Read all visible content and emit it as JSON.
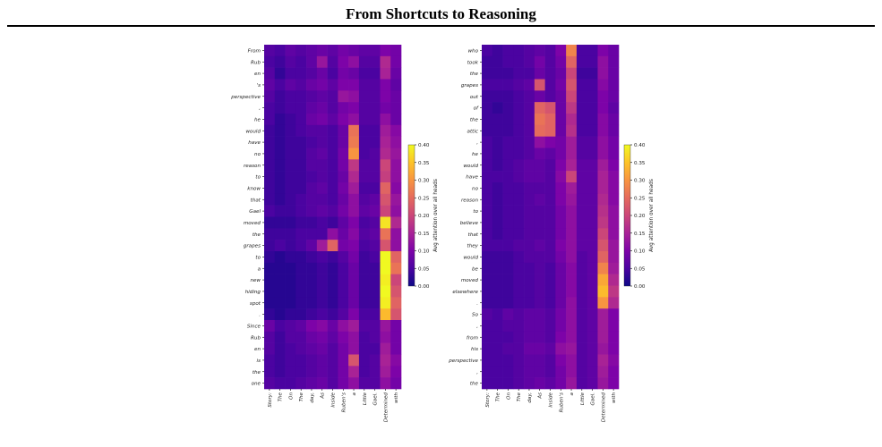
{
  "page": {
    "title": "From Shortcuts to Reasoning"
  },
  "chart_data": [
    {
      "type": "heatmap",
      "xlabel": "",
      "ylabel": "",
      "x_labels": [
        "Story:",
        "The",
        "On",
        "The",
        "day,",
        "As",
        "Inside",
        "Ruben's",
        "a",
        "Little",
        "Gael.",
        "Determined",
        "with"
      ],
      "y_labels": [
        "From",
        "Rub",
        "en",
        "'s",
        "perspective",
        ",",
        "he",
        "would",
        "have",
        "no",
        "reason",
        "to",
        "know",
        "that",
        "Gael",
        "moved",
        "the",
        "grapes",
        "to",
        "a",
        "new",
        "hiding",
        "spot",
        ".",
        "Since",
        "Rub",
        "en",
        "is",
        "the",
        "one"
      ],
      "colormap": "plasma",
      "colorbar": {
        "label": "Avg attention over all heads",
        "range": [
          0.0,
          0.4
        ],
        "ticks": [
          "0.00",
          "0.05",
          "0.10",
          "0.15",
          "0.20",
          "0.25",
          "0.30",
          "0.35",
          "0.40"
        ]
      },
      "values": [
        [
          0.06,
          0.05,
          0.07,
          0.06,
          0.07,
          0.08,
          0.07,
          0.09,
          0.08,
          0.07,
          0.07,
          0.1,
          0.09
        ],
        [
          0.05,
          0.04,
          0.06,
          0.05,
          0.07,
          0.13,
          0.06,
          0.1,
          0.12,
          0.06,
          0.06,
          0.16,
          0.09
        ],
        [
          0.06,
          0.03,
          0.05,
          0.05,
          0.06,
          0.08,
          0.05,
          0.09,
          0.08,
          0.05,
          0.05,
          0.15,
          0.08
        ],
        [
          0.07,
          0.05,
          0.07,
          0.06,
          0.08,
          0.09,
          0.07,
          0.1,
          0.1,
          0.06,
          0.06,
          0.1,
          0.07
        ],
        [
          0.06,
          0.04,
          0.05,
          0.05,
          0.06,
          0.07,
          0.06,
          0.13,
          0.12,
          0.06,
          0.06,
          0.1,
          0.08
        ],
        [
          0.05,
          0.04,
          0.05,
          0.05,
          0.07,
          0.08,
          0.06,
          0.09,
          0.1,
          0.06,
          0.06,
          0.09,
          0.08
        ],
        [
          0.05,
          0.03,
          0.04,
          0.05,
          0.08,
          0.09,
          0.07,
          0.1,
          0.12,
          0.06,
          0.06,
          0.12,
          0.08
        ],
        [
          0.04,
          0.03,
          0.04,
          0.05,
          0.06,
          0.06,
          0.05,
          0.08,
          0.26,
          0.05,
          0.05,
          0.14,
          0.11
        ],
        [
          0.04,
          0.03,
          0.04,
          0.04,
          0.05,
          0.06,
          0.05,
          0.08,
          0.27,
          0.05,
          0.05,
          0.15,
          0.12
        ],
        [
          0.04,
          0.03,
          0.04,
          0.04,
          0.06,
          0.07,
          0.05,
          0.09,
          0.3,
          0.05,
          0.06,
          0.16,
          0.13
        ],
        [
          0.04,
          0.03,
          0.04,
          0.04,
          0.06,
          0.06,
          0.05,
          0.09,
          0.18,
          0.06,
          0.06,
          0.2,
          0.12
        ],
        [
          0.04,
          0.03,
          0.04,
          0.04,
          0.05,
          0.06,
          0.05,
          0.08,
          0.16,
          0.06,
          0.06,
          0.19,
          0.12
        ],
        [
          0.04,
          0.03,
          0.04,
          0.04,
          0.06,
          0.07,
          0.05,
          0.09,
          0.14,
          0.05,
          0.05,
          0.24,
          0.11
        ],
        [
          0.04,
          0.03,
          0.04,
          0.05,
          0.06,
          0.06,
          0.05,
          0.08,
          0.12,
          0.06,
          0.07,
          0.22,
          0.13
        ],
        [
          0.05,
          0.04,
          0.04,
          0.05,
          0.06,
          0.07,
          0.06,
          0.09,
          0.12,
          0.07,
          0.08,
          0.2,
          0.12
        ],
        [
          0.03,
          0.03,
          0.03,
          0.04,
          0.04,
          0.05,
          0.04,
          0.07,
          0.1,
          0.05,
          0.06,
          0.38,
          0.16
        ],
        [
          0.04,
          0.04,
          0.04,
          0.05,
          0.05,
          0.05,
          0.12,
          0.08,
          0.11,
          0.06,
          0.07,
          0.26,
          0.12
        ],
        [
          0.04,
          0.05,
          0.04,
          0.05,
          0.07,
          0.14,
          0.24,
          0.09,
          0.1,
          0.05,
          0.06,
          0.22,
          0.12
        ],
        [
          0.03,
          0.02,
          0.03,
          0.03,
          0.04,
          0.05,
          0.04,
          0.06,
          0.09,
          0.04,
          0.05,
          0.4,
          0.24
        ],
        [
          0.02,
          0.02,
          0.02,
          0.03,
          0.03,
          0.04,
          0.03,
          0.05,
          0.08,
          0.04,
          0.04,
          0.4,
          0.26
        ],
        [
          0.02,
          0.02,
          0.02,
          0.03,
          0.03,
          0.04,
          0.03,
          0.05,
          0.08,
          0.04,
          0.04,
          0.39,
          0.2
        ],
        [
          0.02,
          0.02,
          0.02,
          0.03,
          0.03,
          0.04,
          0.03,
          0.05,
          0.08,
          0.04,
          0.04,
          0.4,
          0.22
        ],
        [
          0.02,
          0.02,
          0.02,
          0.03,
          0.03,
          0.04,
          0.03,
          0.05,
          0.08,
          0.04,
          0.04,
          0.39,
          0.24
        ],
        [
          0.03,
          0.02,
          0.03,
          0.03,
          0.04,
          0.05,
          0.04,
          0.06,
          0.1,
          0.05,
          0.05,
          0.34,
          0.22
        ],
        [
          0.08,
          0.05,
          0.06,
          0.07,
          0.1,
          0.11,
          0.08,
          0.12,
          0.14,
          0.06,
          0.06,
          0.13,
          0.09
        ],
        [
          0.06,
          0.04,
          0.06,
          0.06,
          0.08,
          0.09,
          0.07,
          0.1,
          0.12,
          0.05,
          0.06,
          0.12,
          0.09
        ],
        [
          0.06,
          0.04,
          0.05,
          0.06,
          0.07,
          0.08,
          0.06,
          0.09,
          0.12,
          0.05,
          0.05,
          0.14,
          0.09
        ],
        [
          0.05,
          0.04,
          0.05,
          0.05,
          0.06,
          0.07,
          0.06,
          0.09,
          0.22,
          0.05,
          0.06,
          0.15,
          0.11
        ],
        [
          0.05,
          0.04,
          0.05,
          0.05,
          0.06,
          0.07,
          0.06,
          0.09,
          0.15,
          0.05,
          0.06,
          0.14,
          0.1
        ],
        [
          0.06,
          0.05,
          0.05,
          0.06,
          0.07,
          0.08,
          0.06,
          0.09,
          0.12,
          0.06,
          0.06,
          0.12,
          0.09
        ]
      ]
    },
    {
      "type": "heatmap",
      "xlabel": "",
      "ylabel": "",
      "x_labels": [
        "Story:",
        "The",
        "On",
        "The",
        "day,",
        "As",
        "Inside",
        "Ruben's",
        "a",
        "Little",
        "Gael.",
        "Determined",
        "with"
      ],
      "y_labels": [
        "who",
        "took",
        "the",
        "grapes",
        "out",
        "of",
        "the",
        "attic",
        ",",
        "he",
        "would",
        "have",
        "no",
        "reason",
        "to",
        "believe",
        "that",
        "they",
        "would",
        "be",
        "moved",
        "elsewhere",
        ".",
        "So",
        ",",
        "from",
        "his",
        "perspective",
        ",",
        "the"
      ],
      "colormap": "plasma",
      "colorbar": {
        "label": "Avg attention over all heads",
        "range": [
          0.0,
          0.4
        ],
        "ticks": [
          "0.00",
          "0.05",
          "0.10",
          "0.15",
          "0.20",
          "0.25",
          "0.30",
          "0.35",
          "0.40"
        ]
      },
      "values": [
        [
          0.05,
          0.04,
          0.05,
          0.05,
          0.06,
          0.07,
          0.06,
          0.1,
          0.28,
          0.05,
          0.05,
          0.1,
          0.08
        ],
        [
          0.04,
          0.04,
          0.05,
          0.05,
          0.06,
          0.09,
          0.06,
          0.09,
          0.24,
          0.05,
          0.05,
          0.12,
          0.08
        ],
        [
          0.04,
          0.04,
          0.04,
          0.05,
          0.05,
          0.08,
          0.06,
          0.08,
          0.2,
          0.04,
          0.04,
          0.12,
          0.08
        ],
        [
          0.05,
          0.05,
          0.05,
          0.06,
          0.07,
          0.22,
          0.06,
          0.09,
          0.22,
          0.05,
          0.05,
          0.11,
          0.08
        ],
        [
          0.04,
          0.04,
          0.04,
          0.05,
          0.06,
          0.08,
          0.06,
          0.08,
          0.2,
          0.05,
          0.05,
          0.1,
          0.08
        ],
        [
          0.04,
          0.03,
          0.04,
          0.05,
          0.06,
          0.24,
          0.22,
          0.08,
          0.18,
          0.05,
          0.05,
          0.1,
          0.07
        ],
        [
          0.04,
          0.04,
          0.04,
          0.05,
          0.06,
          0.26,
          0.24,
          0.08,
          0.16,
          0.05,
          0.05,
          0.11,
          0.08
        ],
        [
          0.04,
          0.04,
          0.04,
          0.05,
          0.06,
          0.25,
          0.24,
          0.08,
          0.17,
          0.05,
          0.05,
          0.11,
          0.08
        ],
        [
          0.05,
          0.04,
          0.05,
          0.05,
          0.06,
          0.12,
          0.1,
          0.09,
          0.14,
          0.06,
          0.06,
          0.12,
          0.09
        ],
        [
          0.05,
          0.04,
          0.05,
          0.05,
          0.06,
          0.08,
          0.07,
          0.09,
          0.14,
          0.06,
          0.06,
          0.12,
          0.09
        ],
        [
          0.05,
          0.04,
          0.05,
          0.06,
          0.07,
          0.07,
          0.06,
          0.1,
          0.15,
          0.07,
          0.07,
          0.14,
          0.1
        ],
        [
          0.05,
          0.05,
          0.05,
          0.06,
          0.07,
          0.07,
          0.06,
          0.11,
          0.2,
          0.07,
          0.07,
          0.15,
          0.11
        ],
        [
          0.05,
          0.04,
          0.05,
          0.05,
          0.06,
          0.06,
          0.06,
          0.1,
          0.14,
          0.07,
          0.07,
          0.15,
          0.11
        ],
        [
          0.05,
          0.04,
          0.05,
          0.05,
          0.06,
          0.07,
          0.06,
          0.1,
          0.13,
          0.07,
          0.07,
          0.16,
          0.11
        ],
        [
          0.05,
          0.04,
          0.05,
          0.05,
          0.06,
          0.06,
          0.06,
          0.09,
          0.12,
          0.07,
          0.07,
          0.17,
          0.12
        ],
        [
          0.05,
          0.04,
          0.05,
          0.05,
          0.06,
          0.06,
          0.06,
          0.09,
          0.12,
          0.07,
          0.07,
          0.18,
          0.12
        ],
        [
          0.05,
          0.04,
          0.05,
          0.05,
          0.06,
          0.06,
          0.06,
          0.09,
          0.12,
          0.07,
          0.07,
          0.2,
          0.12
        ],
        [
          0.05,
          0.05,
          0.05,
          0.06,
          0.06,
          0.07,
          0.06,
          0.1,
          0.12,
          0.07,
          0.07,
          0.22,
          0.13
        ],
        [
          0.04,
          0.04,
          0.04,
          0.05,
          0.06,
          0.06,
          0.06,
          0.09,
          0.12,
          0.06,
          0.07,
          0.24,
          0.13
        ],
        [
          0.04,
          0.04,
          0.04,
          0.05,
          0.05,
          0.06,
          0.05,
          0.08,
          0.11,
          0.06,
          0.07,
          0.28,
          0.14
        ],
        [
          0.04,
          0.04,
          0.04,
          0.05,
          0.05,
          0.06,
          0.05,
          0.08,
          0.11,
          0.06,
          0.07,
          0.32,
          0.16
        ],
        [
          0.04,
          0.04,
          0.04,
          0.05,
          0.05,
          0.06,
          0.05,
          0.08,
          0.11,
          0.06,
          0.07,
          0.34,
          0.18
        ],
        [
          0.04,
          0.04,
          0.04,
          0.05,
          0.05,
          0.06,
          0.05,
          0.08,
          0.12,
          0.06,
          0.07,
          0.3,
          0.16
        ],
        [
          0.06,
          0.05,
          0.07,
          0.06,
          0.07,
          0.07,
          0.06,
          0.09,
          0.12,
          0.06,
          0.07,
          0.14,
          0.1
        ],
        [
          0.05,
          0.05,
          0.06,
          0.06,
          0.07,
          0.07,
          0.06,
          0.09,
          0.12,
          0.06,
          0.07,
          0.14,
          0.1
        ],
        [
          0.05,
          0.05,
          0.05,
          0.06,
          0.07,
          0.07,
          0.06,
          0.1,
          0.12,
          0.06,
          0.07,
          0.14,
          0.1
        ],
        [
          0.05,
          0.05,
          0.06,
          0.06,
          0.08,
          0.08,
          0.07,
          0.12,
          0.13,
          0.06,
          0.07,
          0.13,
          0.1
        ],
        [
          0.05,
          0.05,
          0.05,
          0.06,
          0.07,
          0.07,
          0.06,
          0.1,
          0.12,
          0.06,
          0.07,
          0.15,
          0.11
        ],
        [
          0.05,
          0.05,
          0.05,
          0.06,
          0.07,
          0.07,
          0.06,
          0.09,
          0.12,
          0.06,
          0.07,
          0.14,
          0.1
        ],
        [
          0.05,
          0.05,
          0.05,
          0.06,
          0.07,
          0.08,
          0.07,
          0.09,
          0.13,
          0.06,
          0.07,
          0.13,
          0.1
        ]
      ]
    }
  ]
}
